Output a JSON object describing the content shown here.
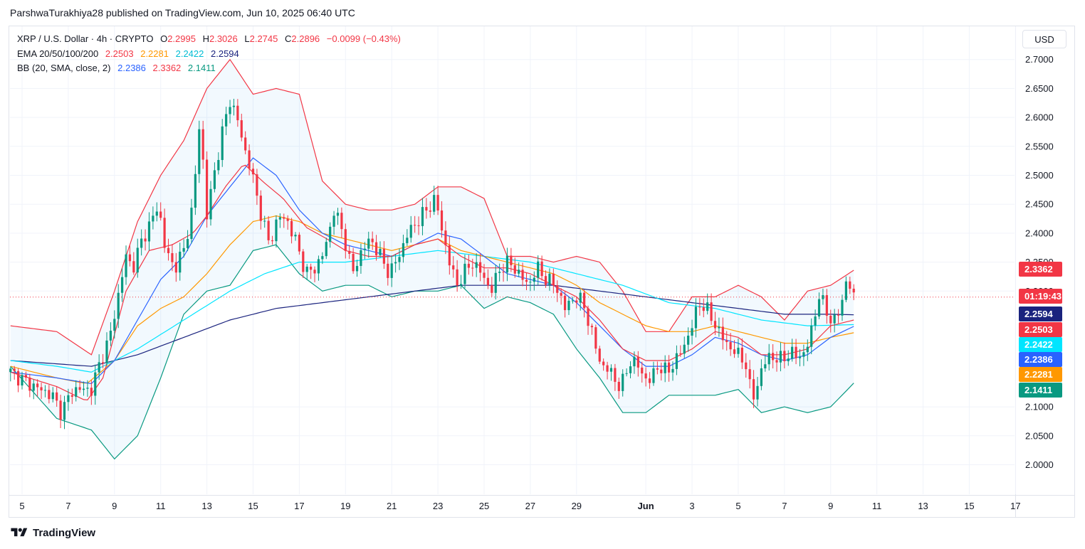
{
  "header": {
    "text": "ParshwaTurakhiya28 published on TradingView.com, Jun 10, 2025 06:40 UTC"
  },
  "legend": {
    "symbol": "XRP / U.S. Dollar · 4h · CRYPTO",
    "o_label": "O",
    "o": "2.2995",
    "h_label": "H",
    "h": "2.3026",
    "l_label": "L",
    "l": "2.2745",
    "c_label": "C",
    "c": "2.2896",
    "change": "−0.0099 (−0.43%)",
    "ema_label": "EMA 20/50/100/200",
    "ema20": "2.2503",
    "ema50": "2.2281",
    "ema100": "2.2422",
    "ema200": "2.2594",
    "bb_label": "BB (20, SMA, close, 2)",
    "bb_basis": "2.2386",
    "bb_upper": "2.3362",
    "bb_lower": "2.1411"
  },
  "currency_button": "USD",
  "footer": {
    "brand": "TradingView"
  },
  "colors": {
    "up": "#089981",
    "down": "#f23645",
    "ema20": "#f23645",
    "ema50": "#ff9800",
    "ema100": "#00e5ff",
    "ema200": "#1a237e",
    "bb_basis": "#2962ff",
    "bb_upper": "#f23645",
    "bb_lower": "#089981",
    "bb_fill": "#2196f3"
  },
  "chart_data": {
    "type": "candlestick",
    "title": "XRP / U.S. Dollar · 4h · CRYPTO",
    "y_ticks": [
      "2.7000",
      "2.6500",
      "2.6000",
      "2.5500",
      "2.5000",
      "2.4500",
      "2.4000",
      "2.3500",
      "2.3000",
      "2.1000",
      "2.0500",
      "2.0000"
    ],
    "ylim": [
      1.95,
      2.73
    ],
    "x_ticks": [
      "5",
      "7",
      "9",
      "11",
      "13",
      "15",
      "17",
      "19",
      "21",
      "23",
      "25",
      "27",
      "29",
      "Jun",
      "3",
      "5",
      "7",
      "9",
      "11",
      "13",
      "15",
      "17"
    ],
    "x_tick_days": [
      5,
      7,
      9,
      11,
      13,
      15,
      17,
      19,
      21,
      23,
      25,
      27,
      29,
      32,
      34,
      36,
      38,
      40,
      42,
      44,
      46,
      48
    ],
    "x_range_days": [
      4.5,
      48.0
    ],
    "grid": true,
    "last_price_countdown": "01:19:43",
    "last_price": 2.2896,
    "price_badges": [
      {
        "label": "2.3362",
        "value": 2.3362,
        "color": "#f23645"
      },
      {
        "label": "01:19:43",
        "value": 2.2896,
        "color": "#f23645"
      },
      {
        "label": "2.2594",
        "value": 2.2594,
        "color": "#1a237e"
      },
      {
        "label": "2.2503",
        "value": 2.2503,
        "color": "#f23645"
      },
      {
        "label": "2.2422",
        "value": 2.2422,
        "color": "#00e5ff"
      },
      {
        "label": "2.2386",
        "value": 2.2386,
        "color": "#2962ff"
      },
      {
        "label": "2.2281",
        "value": 2.2281,
        "color": "#ff9800"
      },
      {
        "label": "2.1411",
        "value": 2.1411,
        "color": "#089981"
      }
    ],
    "close_anchors": [
      [
        4.5,
        2.16
      ],
      [
        5.3,
        2.14
      ],
      [
        5.8,
        2.13
      ],
      [
        6.3,
        2.12
      ],
      [
        6.7,
        2.09
      ],
      [
        7.2,
        2.13
      ],
      [
        7.7,
        2.13
      ],
      [
        8.0,
        2.13
      ],
      [
        8.4,
        2.18
      ],
      [
        8.8,
        2.22
      ],
      [
        9.2,
        2.3
      ],
      [
        9.5,
        2.36
      ],
      [
        9.8,
        2.34
      ],
      [
        10.2,
        2.39
      ],
      [
        10.6,
        2.42
      ],
      [
        10.9,
        2.45
      ],
      [
        11.2,
        2.37
      ],
      [
        11.6,
        2.34
      ],
      [
        12.0,
        2.37
      ],
      [
        12.4,
        2.45
      ],
      [
        12.7,
        2.6
      ],
      [
        13.0,
        2.43
      ],
      [
        13.3,
        2.5
      ],
      [
        13.7,
        2.58
      ],
      [
        14.0,
        2.63
      ],
      [
        14.3,
        2.6
      ],
      [
        14.6,
        2.55
      ],
      [
        14.9,
        2.51
      ],
      [
        15.3,
        2.44
      ],
      [
        15.7,
        2.38
      ],
      [
        16.1,
        2.43
      ],
      [
        16.5,
        2.42
      ],
      [
        16.9,
        2.38
      ],
      [
        17.3,
        2.33
      ],
      [
        17.7,
        2.34
      ],
      [
        18.1,
        2.37
      ],
      [
        18.5,
        2.44
      ],
      [
        18.9,
        2.4
      ],
      [
        19.3,
        2.33
      ],
      [
        19.7,
        2.37
      ],
      [
        20.1,
        2.39
      ],
      [
        20.5,
        2.36
      ],
      [
        20.9,
        2.33
      ],
      [
        21.3,
        2.36
      ],
      [
        21.7,
        2.4
      ],
      [
        22.1,
        2.42
      ],
      [
        22.5,
        2.44
      ],
      [
        22.9,
        2.46
      ],
      [
        23.2,
        2.4
      ],
      [
        23.5,
        2.35
      ],
      [
        23.8,
        2.31
      ],
      [
        24.1,
        2.33
      ],
      [
        24.5,
        2.35
      ],
      [
        24.9,
        2.33
      ],
      [
        25.3,
        2.3
      ],
      [
        25.7,
        2.34
      ],
      [
        26.1,
        2.35
      ],
      [
        26.5,
        2.33
      ],
      [
        26.9,
        2.31
      ],
      [
        27.3,
        2.34
      ],
      [
        27.7,
        2.32
      ],
      [
        28.1,
        2.31
      ],
      [
        28.5,
        2.27
      ],
      [
        28.9,
        2.29
      ],
      [
        29.3,
        2.28
      ],
      [
        29.7,
        2.22
      ],
      [
        30.1,
        2.17
      ],
      [
        30.5,
        2.16
      ],
      [
        30.9,
        2.13
      ],
      [
        31.3,
        2.18
      ],
      [
        31.7,
        2.17
      ],
      [
        32.1,
        2.14
      ],
      [
        32.5,
        2.17
      ],
      [
        32.9,
        2.16
      ],
      [
        33.3,
        2.18
      ],
      [
        33.7,
        2.21
      ],
      [
        34.0,
        2.24
      ],
      [
        34.3,
        2.28
      ],
      [
        34.6,
        2.27
      ],
      [
        34.9,
        2.25
      ],
      [
        35.3,
        2.22
      ],
      [
        35.7,
        2.2
      ],
      [
        36.0,
        2.19
      ],
      [
        36.3,
        2.18
      ],
      [
        36.6,
        2.11
      ],
      [
        36.9,
        2.15
      ],
      [
        37.3,
        2.19
      ],
      [
        37.7,
        2.18
      ],
      [
        38.1,
        2.19
      ],
      [
        38.5,
        2.19
      ],
      [
        38.9,
        2.19
      ],
      [
        39.2,
        2.24
      ],
      [
        39.5,
        2.29
      ],
      [
        39.8,
        2.27
      ],
      [
        40.1,
        2.24
      ],
      [
        40.4,
        2.27
      ],
      [
        40.7,
        2.32
      ],
      [
        41.0,
        2.29
      ]
    ],
    "ema20_anchors": [
      [
        4.5,
        2.16
      ],
      [
        6.5,
        2.135
      ],
      [
        7.8,
        2.11
      ],
      [
        8.5,
        2.15
      ],
      [
        9.5,
        2.3
      ],
      [
        10.5,
        2.37
      ],
      [
        11.5,
        2.38
      ],
      [
        12.4,
        2.4
      ],
      [
        13.0,
        2.43
      ],
      [
        13.8,
        2.48
      ],
      [
        14.6,
        2.52
      ],
      [
        15.4,
        2.49
      ],
      [
        16.3,
        2.46
      ],
      [
        17.3,
        2.41
      ],
      [
        18.2,
        2.39
      ],
      [
        19.0,
        2.37
      ],
      [
        20.0,
        2.36
      ],
      [
        21.0,
        2.36
      ],
      [
        22.0,
        2.38
      ],
      [
        23.0,
        2.39
      ],
      [
        24.0,
        2.36
      ],
      [
        25.0,
        2.34
      ],
      [
        26.0,
        2.34
      ],
      [
        27.0,
        2.33
      ],
      [
        28.0,
        2.31
      ],
      [
        29.0,
        2.29
      ],
      [
        30.0,
        2.25
      ],
      [
        31.0,
        2.2
      ],
      [
        32.0,
        2.18
      ],
      [
        33.0,
        2.18
      ],
      [
        34.0,
        2.2
      ],
      [
        35.0,
        2.23
      ],
      [
        36.0,
        2.22
      ],
      [
        37.0,
        2.19
      ],
      [
        38.0,
        2.19
      ],
      [
        39.0,
        2.2
      ],
      [
        40.0,
        2.24
      ],
      [
        41.0,
        2.25
      ]
    ],
    "ema50_anchors": [
      [
        4.5,
        2.17
      ],
      [
        6.5,
        2.15
      ],
      [
        7.8,
        2.14
      ],
      [
        9.0,
        2.18
      ],
      [
        10.0,
        2.24
      ],
      [
        11.0,
        2.27
      ],
      [
        12.0,
        2.29
      ],
      [
        13.0,
        2.33
      ],
      [
        14.0,
        2.38
      ],
      [
        15.0,
        2.42
      ],
      [
        16.0,
        2.43
      ],
      [
        17.0,
        2.42
      ],
      [
        18.0,
        2.4
      ],
      [
        19.0,
        2.39
      ],
      [
        20.0,
        2.38
      ],
      [
        21.0,
        2.37
      ],
      [
        22.0,
        2.38
      ],
      [
        23.0,
        2.39
      ],
      [
        24.0,
        2.37
      ],
      [
        25.0,
        2.36
      ],
      [
        26.0,
        2.35
      ],
      [
        27.0,
        2.34
      ],
      [
        28.0,
        2.33
      ],
      [
        29.0,
        2.31
      ],
      [
        30.0,
        2.28
      ],
      [
        31.0,
        2.26
      ],
      [
        32.0,
        2.24
      ],
      [
        33.0,
        2.23
      ],
      [
        34.0,
        2.23
      ],
      [
        35.0,
        2.24
      ],
      [
        36.0,
        2.23
      ],
      [
        37.0,
        2.22
      ],
      [
        38.0,
        2.21
      ],
      [
        39.0,
        2.21
      ],
      [
        40.0,
        2.22
      ],
      [
        41.0,
        2.228
      ]
    ],
    "ema100_anchors": [
      [
        4.5,
        2.18
      ],
      [
        6.5,
        2.17
      ],
      [
        8.0,
        2.16
      ],
      [
        10.0,
        2.2
      ],
      [
        12.0,
        2.25
      ],
      [
        14.0,
        2.3
      ],
      [
        15.5,
        2.33
      ],
      [
        17.0,
        2.35
      ],
      [
        19.0,
        2.35
      ],
      [
        21.0,
        2.36
      ],
      [
        23.0,
        2.37
      ],
      [
        25.0,
        2.36
      ],
      [
        27.0,
        2.35
      ],
      [
        29.0,
        2.33
      ],
      [
        31.0,
        2.31
      ],
      [
        33.0,
        2.28
      ],
      [
        35.0,
        2.27
      ],
      [
        37.0,
        2.25
      ],
      [
        39.0,
        2.24
      ],
      [
        41.0,
        2.242
      ]
    ],
    "ema200_anchors": [
      [
        4.5,
        2.18
      ],
      [
        8.0,
        2.17
      ],
      [
        10.0,
        2.19
      ],
      [
        12.0,
        2.22
      ],
      [
        14.0,
        2.25
      ],
      [
        16.0,
        2.27
      ],
      [
        18.0,
        2.28
      ],
      [
        20.0,
        2.29
      ],
      [
        22.0,
        2.3
      ],
      [
        24.0,
        2.31
      ],
      [
        26.0,
        2.31
      ],
      [
        28.0,
        2.31
      ],
      [
        30.0,
        2.3
      ],
      [
        32.0,
        2.29
      ],
      [
        34.0,
        2.28
      ],
      [
        36.0,
        2.27
      ],
      [
        38.0,
        2.26
      ],
      [
        40.0,
        2.26
      ],
      [
        41.0,
        2.259
      ]
    ],
    "bb_basis_anchors": [
      [
        4.5,
        2.16
      ],
      [
        6.5,
        2.15
      ],
      [
        8.0,
        2.14
      ],
      [
        9.0,
        2.18
      ],
      [
        10.0,
        2.25
      ],
      [
        11.0,
        2.32
      ],
      [
        12.0,
        2.36
      ],
      [
        13.0,
        2.43
      ],
      [
        14.0,
        2.48
      ],
      [
        15.0,
        2.53
      ],
      [
        16.0,
        2.5
      ],
      [
        17.0,
        2.44
      ],
      [
        18.0,
        2.4
      ],
      [
        19.0,
        2.38
      ],
      [
        20.0,
        2.37
      ],
      [
        21.0,
        2.36
      ],
      [
        22.0,
        2.38
      ],
      [
        23.0,
        2.4
      ],
      [
        24.0,
        2.39
      ],
      [
        25.0,
        2.36
      ],
      [
        26.0,
        2.33
      ],
      [
        27.0,
        2.32
      ],
      [
        28.0,
        2.31
      ],
      [
        29.0,
        2.28
      ],
      [
        30.0,
        2.24
      ],
      [
        31.0,
        2.2
      ],
      [
        32.0,
        2.17
      ],
      [
        33.0,
        2.17
      ],
      [
        34.0,
        2.19
      ],
      [
        35.0,
        2.22
      ],
      [
        36.0,
        2.21
      ],
      [
        37.0,
        2.19
      ],
      [
        38.0,
        2.18
      ],
      [
        39.0,
        2.19
      ],
      [
        40.0,
        2.22
      ],
      [
        41.0,
        2.239
      ]
    ],
    "bb_upper_anchors": [
      [
        4.5,
        2.24
      ],
      [
        6.5,
        2.23
      ],
      [
        8.0,
        2.19
      ],
      [
        9.0,
        2.3
      ],
      [
        10.0,
        2.42
      ],
      [
        11.0,
        2.5
      ],
      [
        12.0,
        2.56
      ],
      [
        13.0,
        2.65
      ],
      [
        14.0,
        2.7
      ],
      [
        15.0,
        2.64
      ],
      [
        16.0,
        2.65
      ],
      [
        17.0,
        2.64
      ],
      [
        18.0,
        2.49
      ],
      [
        19.0,
        2.45
      ],
      [
        20.0,
        2.44
      ],
      [
        21.0,
        2.44
      ],
      [
        22.0,
        2.45
      ],
      [
        23.0,
        2.48
      ],
      [
        24.0,
        2.48
      ],
      [
        25.0,
        2.46
      ],
      [
        26.0,
        2.36
      ],
      [
        27.0,
        2.36
      ],
      [
        28.0,
        2.35
      ],
      [
        29.0,
        2.36
      ],
      [
        30.0,
        2.35
      ],
      [
        31.0,
        2.3
      ],
      [
        32.0,
        2.23
      ],
      [
        33.0,
        2.23
      ],
      [
        34.0,
        2.29
      ],
      [
        35.0,
        2.29
      ],
      [
        36.0,
        2.31
      ],
      [
        37.0,
        2.29
      ],
      [
        38.0,
        2.25
      ],
      [
        39.0,
        2.3
      ],
      [
        40.0,
        2.31
      ],
      [
        41.0,
        2.336
      ]
    ],
    "bb_lower_anchors": [
      [
        4.5,
        2.17
      ],
      [
        6.5,
        2.08
      ],
      [
        8.0,
        2.06
      ],
      [
        9.0,
        2.01
      ],
      [
        10.0,
        2.05
      ],
      [
        11.0,
        2.15
      ],
      [
        12.0,
        2.26
      ],
      [
        13.0,
        2.3
      ],
      [
        14.0,
        2.31
      ],
      [
        15.0,
        2.37
      ],
      [
        16.0,
        2.38
      ],
      [
        17.0,
        2.33
      ],
      [
        18.0,
        2.3
      ],
      [
        19.0,
        2.31
      ],
      [
        20.0,
        2.31
      ],
      [
        21.0,
        2.29
      ],
      [
        22.0,
        2.3
      ],
      [
        23.0,
        2.3
      ],
      [
        24.0,
        2.31
      ],
      [
        25.0,
        2.27
      ],
      [
        26.0,
        2.29
      ],
      [
        27.0,
        2.28
      ],
      [
        28.0,
        2.26
      ],
      [
        29.0,
        2.2
      ],
      [
        30.0,
        2.15
      ],
      [
        31.0,
        2.09
      ],
      [
        32.0,
        2.09
      ],
      [
        33.0,
        2.12
      ],
      [
        34.0,
        2.12
      ],
      [
        35.0,
        2.12
      ],
      [
        36.0,
        2.13
      ],
      [
        37.0,
        2.09
      ],
      [
        38.0,
        2.1
      ],
      [
        39.0,
        2.09
      ],
      [
        40.0,
        2.1
      ],
      [
        41.0,
        2.141
      ]
    ]
  }
}
